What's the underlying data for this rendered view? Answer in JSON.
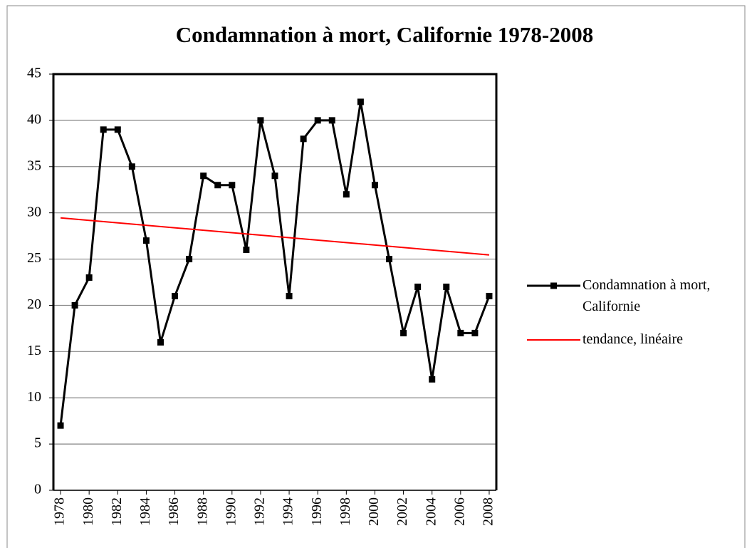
{
  "chart_data": {
    "type": "line",
    "title": "Condamnation à mort, Californie 1978-2008",
    "x": [
      1978,
      1979,
      1980,
      1981,
      1982,
      1983,
      1984,
      1985,
      1986,
      1987,
      1988,
      1989,
      1990,
      1991,
      1992,
      1993,
      1994,
      1995,
      1996,
      1997,
      1998,
      1999,
      2000,
      2001,
      2002,
      2003,
      2004,
      2005,
      2006,
      2007,
      2008
    ],
    "series": [
      {
        "name": "Condamnation à mort, Californie",
        "color": "#000000",
        "marker": "square",
        "values": [
          7,
          20,
          23,
          39,
          39,
          35,
          27,
          16,
          21,
          25,
          34,
          33,
          33,
          26,
          40,
          34,
          21,
          38,
          40,
          40,
          32,
          42,
          33,
          25,
          17,
          22,
          12,
          22,
          17,
          17,
          21
        ]
      },
      {
        "name": "tendance, linéaire",
        "color": "#ff0000",
        "x": [
          1978,
          2008
        ],
        "values": [
          29.45,
          25.45
        ]
      }
    ],
    "xlim": [
      1977.5,
      2008.5
    ],
    "xticks": [
      1978,
      1980,
      1982,
      1984,
      1986,
      1988,
      1990,
      1992,
      1994,
      1996,
      1998,
      2000,
      2002,
      2004,
      2006,
      2008
    ],
    "ylim": [
      0,
      45
    ],
    "yticks": [
      0,
      5,
      10,
      15,
      20,
      25,
      30,
      35,
      40,
      45
    ],
    "grid": true,
    "legend": "right"
  }
}
